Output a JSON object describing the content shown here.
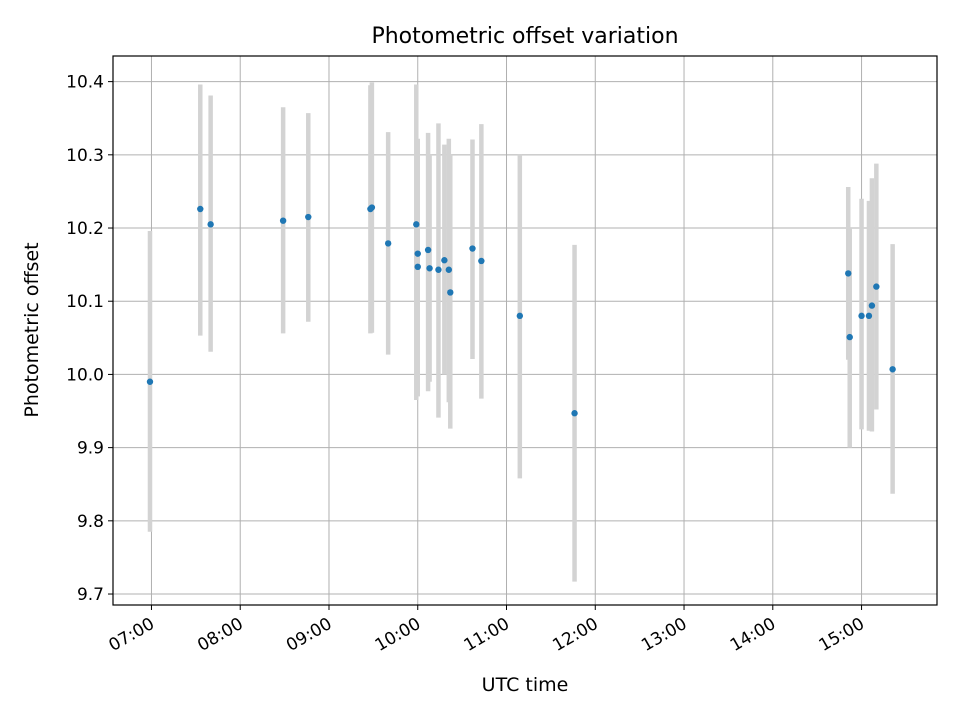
{
  "chart_data": {
    "type": "scatter",
    "title": "Photometric offset variation",
    "xlabel": "UTC time",
    "ylabel": "Photometric offset",
    "x_axis": "time",
    "xlim": [
      "06:34",
      "15:51"
    ],
    "ylim": [
      9.685,
      10.435
    ],
    "x_ticks": [
      "07:00",
      "08:00",
      "09:00",
      "10:00",
      "11:00",
      "12:00",
      "13:00",
      "14:00",
      "15:00"
    ],
    "y_ticks": [
      9.7,
      9.8,
      9.9,
      10.0,
      10.1,
      10.2,
      10.3,
      10.4
    ],
    "y_tick_labels": [
      "9.7",
      "9.8",
      "9.9",
      "10.0",
      "10.1",
      "10.2",
      "10.3",
      "10.4"
    ],
    "grid": true,
    "legend": "none",
    "colors": {
      "marker": "#1f77b4",
      "errorbar": "#d3d3d3",
      "grid": "#b0b0b0"
    },
    "points": [
      {
        "x": "06:59",
        "y": 9.99,
        "yerr_low": 9.785,
        "yerr_high": 10.196
      },
      {
        "x": "07:33",
        "y": 10.226,
        "yerr_low": 10.053,
        "yerr_high": 10.396
      },
      {
        "x": "07:40",
        "y": 10.205,
        "yerr_low": 10.031,
        "yerr_high": 10.381
      },
      {
        "x": "08:29",
        "y": 10.21,
        "yerr_low": 10.056,
        "yerr_high": 10.365
      },
      {
        "x": "08:46",
        "y": 10.215,
        "yerr_low": 10.072,
        "yerr_high": 10.357
      },
      {
        "x": "09:28",
        "y": 10.226,
        "yerr_low": 10.056,
        "yerr_high": 10.395
      },
      {
        "x": "09:29",
        "y": 10.228,
        "yerr_low": 10.057,
        "yerr_high": 10.399
      },
      {
        "x": "09:40",
        "y": 10.179,
        "yerr_low": 10.027,
        "yerr_high": 10.331
      },
      {
        "x": "09:59",
        "y": 10.205,
        "yerr_low": 9.965,
        "yerr_high": 10.396
      },
      {
        "x": "10:00",
        "y": 10.147,
        "yerr_low": 9.97,
        "yerr_high": 10.322
      },
      {
        "x": "10:00",
        "y": 10.165,
        "yerr_low": 10.01,
        "yerr_high": 10.32
      },
      {
        "x": "10:07",
        "y": 10.17,
        "yerr_low": 9.977,
        "yerr_high": 10.33
      },
      {
        "x": "10:08",
        "y": 10.145,
        "yerr_low": 9.99,
        "yerr_high": 10.3
      },
      {
        "x": "10:14",
        "y": 10.143,
        "yerr_low": 9.941,
        "yerr_high": 10.343
      },
      {
        "x": "10:18",
        "y": 10.156,
        "yerr_low": 10.0,
        "yerr_high": 10.314
      },
      {
        "x": "10:21",
        "y": 10.143,
        "yerr_low": 9.962,
        "yerr_high": 10.322
      },
      {
        "x": "10:22",
        "y": 10.112,
        "yerr_low": 9.926,
        "yerr_high": 10.3
      },
      {
        "x": "10:37",
        "y": 10.172,
        "yerr_low": 10.021,
        "yerr_high": 10.321
      },
      {
        "x": "10:43",
        "y": 10.155,
        "yerr_low": 9.967,
        "yerr_high": 10.342
      },
      {
        "x": "11:09",
        "y": 10.08,
        "yerr_low": 9.858,
        "yerr_high": 10.3
      },
      {
        "x": "11:46",
        "y": 9.947,
        "yerr_low": 9.717,
        "yerr_high": 10.177
      },
      {
        "x": "14:51",
        "y": 10.138,
        "yerr_low": 10.02,
        "yerr_high": 10.256
      },
      {
        "x": "14:52",
        "y": 10.051,
        "yerr_low": 9.9,
        "yerr_high": 10.2
      },
      {
        "x": "15:00",
        "y": 10.08,
        "yerr_low": 9.925,
        "yerr_high": 10.24
      },
      {
        "x": "15:05",
        "y": 10.08,
        "yerr_low": 9.923,
        "yerr_high": 10.237
      },
      {
        "x": "15:07",
        "y": 10.094,
        "yerr_low": 9.922,
        "yerr_high": 10.268
      },
      {
        "x": "15:10",
        "y": 10.12,
        "yerr_low": 9.952,
        "yerr_high": 10.288
      },
      {
        "x": "15:21",
        "y": 10.007,
        "yerr_low": 9.837,
        "yerr_high": 10.178
      }
    ]
  }
}
